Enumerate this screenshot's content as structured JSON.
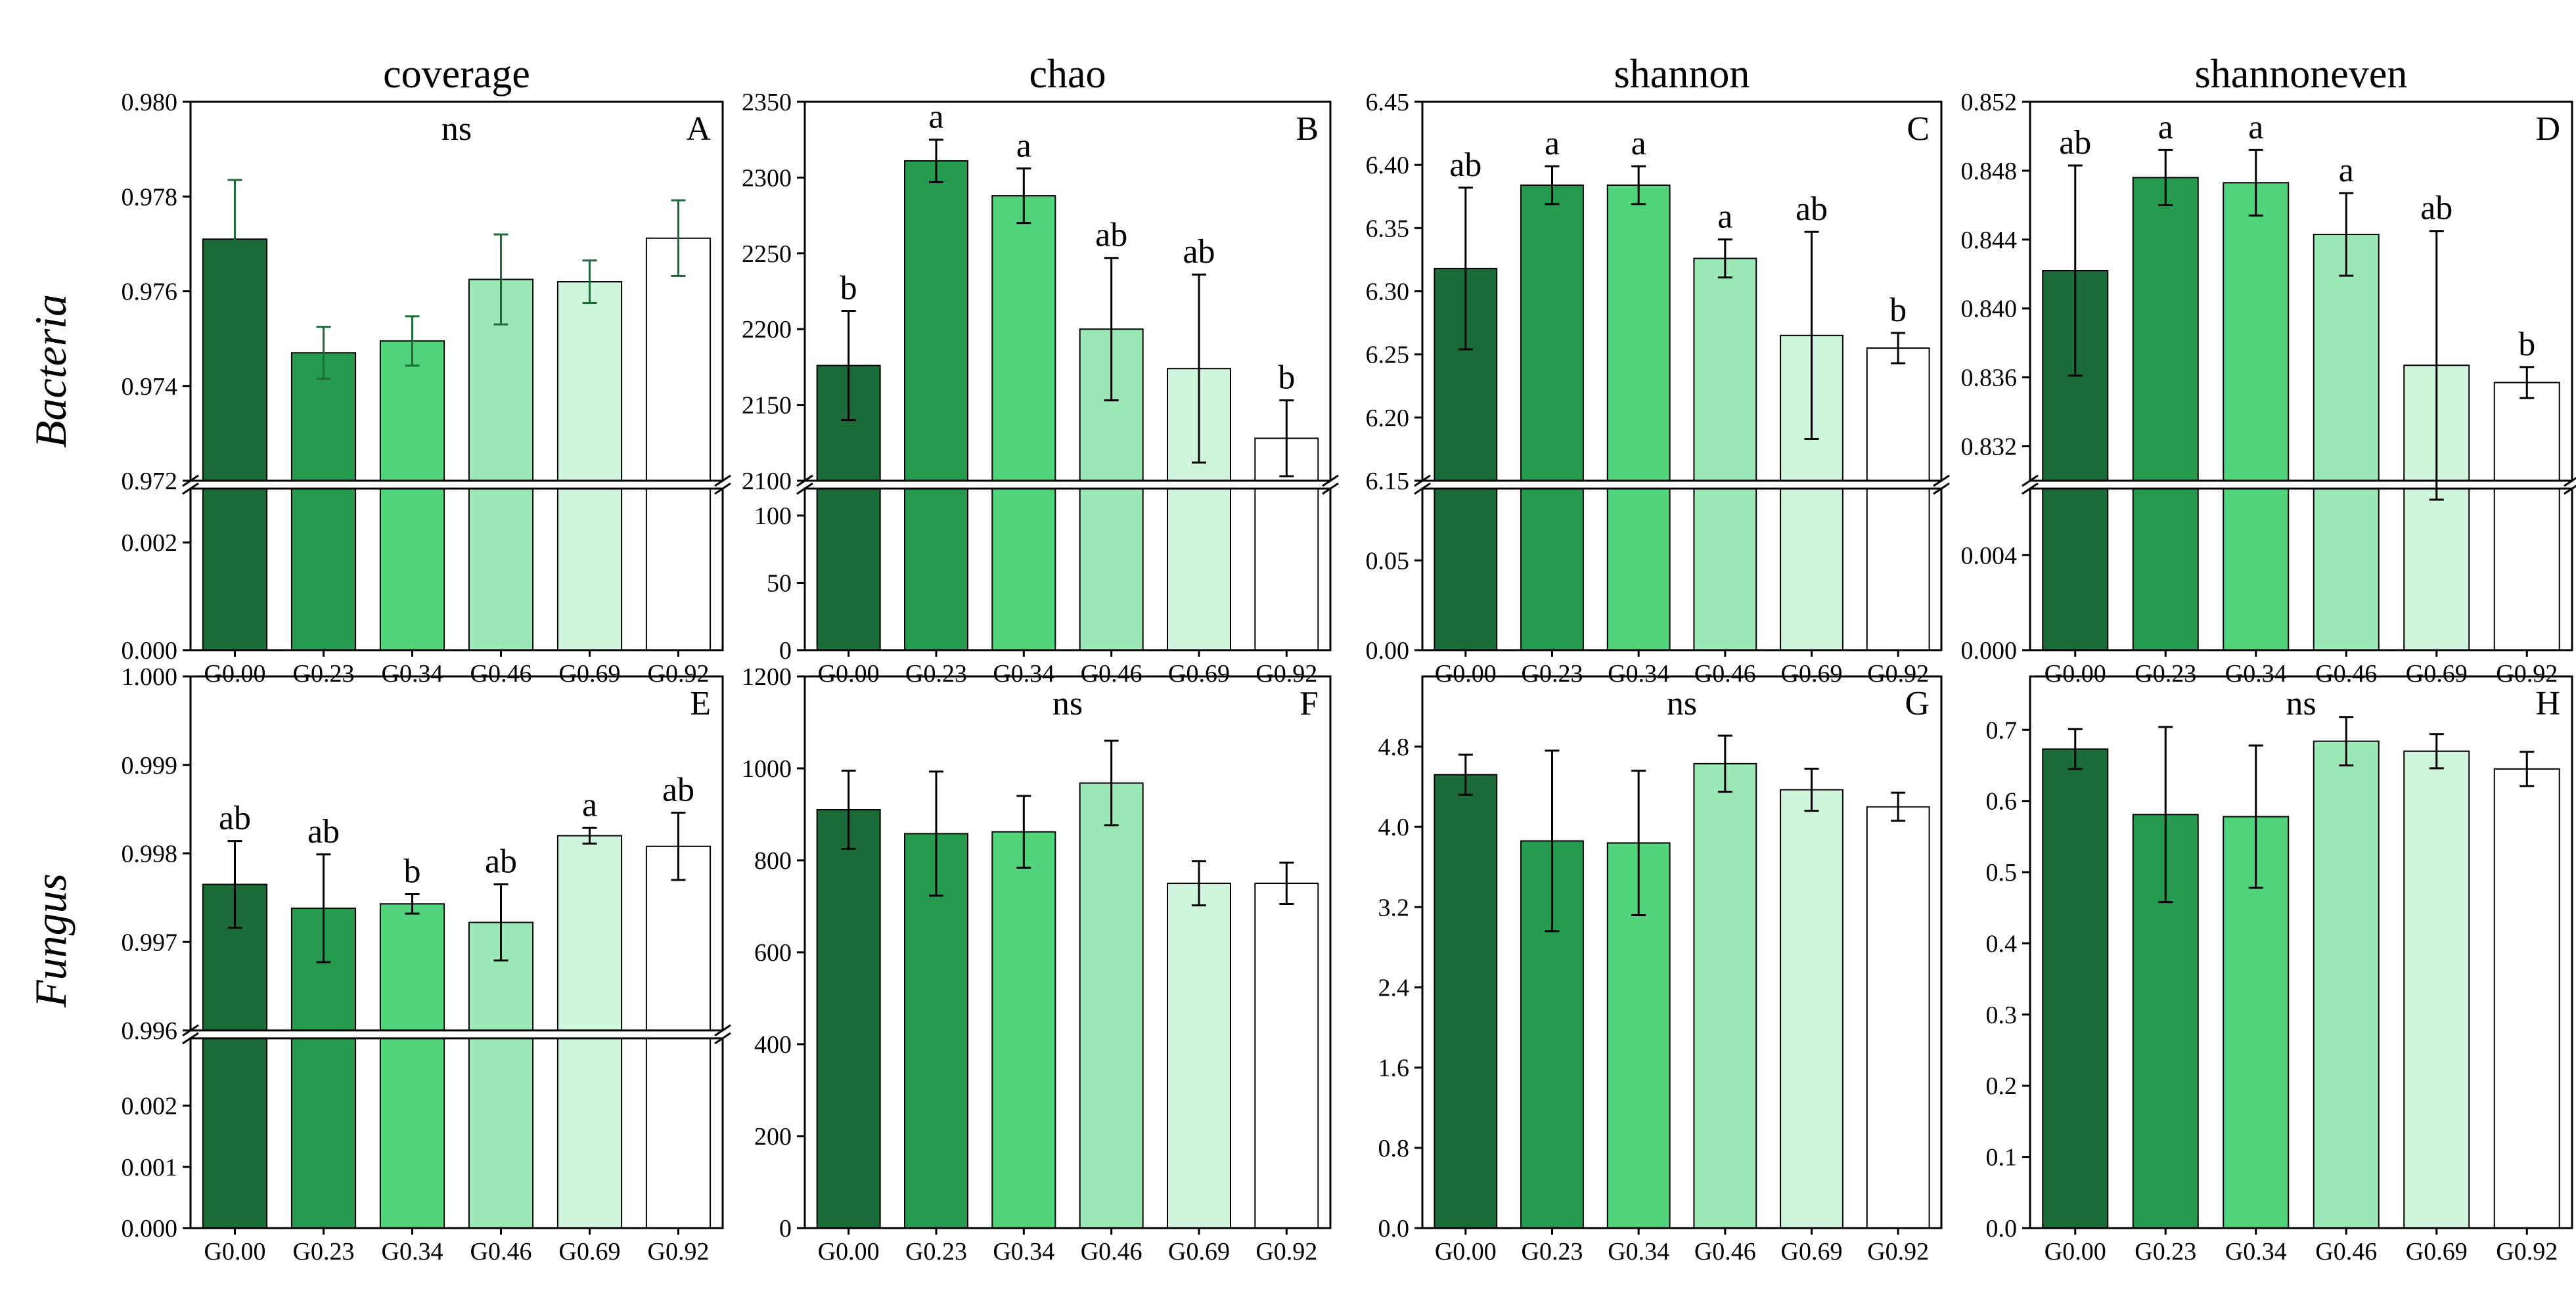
{
  "row_labels": [
    "Bacteria",
    "Fungus"
  ],
  "categories": [
    "G0.00",
    "G0.23",
    "G0.34",
    "G0.46",
    "G0.69",
    "G0.92"
  ],
  "colors": {
    "bars": [
      "#1b6b38",
      "#269a4e",
      "#52d47c",
      "#9de8b7",
      "#cff5dc",
      "#ffffff"
    ],
    "frame": "#000000"
  },
  "chart_data": [
    {
      "type": "bar",
      "id": "A",
      "title": "coverage",
      "panel_letter": "A",
      "broken_axis": true,
      "upper_ylim": [
        0.972,
        0.98
      ],
      "lower_ylim": [
        0,
        0.003
      ],
      "upper_ticks": [
        "0.972",
        "0.974",
        "0.976",
        "0.978",
        "0.980"
      ],
      "lower_ticks": [
        "0.000",
        "0.002"
      ],
      "values": [
        0.9771,
        0.9747,
        0.97495,
        0.97625,
        0.9762,
        0.97712
      ],
      "errors": [
        0.00125,
        0.00055,
        0.00052,
        0.00095,
        0.00045,
        0.0008
      ],
      "labels": [
        "",
        "",
        "",
        "",
        "",
        ""
      ],
      "significance": "ns"
    },
    {
      "type": "bar",
      "id": "B",
      "title": "chao",
      "panel_letter": "B",
      "broken_axis": true,
      "upper_ylim": [
        2100,
        2350
      ],
      "lower_ylim": [
        0,
        120
      ],
      "upper_ticks": [
        "2100",
        "2150",
        "2200",
        "2250",
        "2300",
        "2350"
      ],
      "lower_ticks": [
        "0",
        "50",
        "100"
      ],
      "values": [
        2176,
        2311,
        2288,
        2200,
        2174,
        2128
      ],
      "errors": [
        36,
        14,
        18,
        47,
        62,
        25
      ],
      "labels": [
        "b",
        "a",
        "a",
        "ab",
        "ab",
        "b"
      ],
      "significance": ""
    },
    {
      "type": "bar",
      "id": "C",
      "title": "shannon",
      "panel_letter": "C",
      "broken_axis": true,
      "upper_ylim": [
        6.15,
        6.45
      ],
      "lower_ylim": [
        0,
        0.09
      ],
      "upper_ticks": [
        "6.15",
        "6.20",
        "6.25",
        "6.30",
        "6.35",
        "6.40",
        "6.45"
      ],
      "lower_ticks": [
        "0.00",
        "0.05"
      ],
      "values": [
        6.318,
        6.384,
        6.384,
        6.326,
        6.265,
        6.255
      ],
      "errors": [
        0.064,
        0.015,
        0.015,
        0.015,
        0.082,
        0.012
      ],
      "labels": [
        "ab",
        "a",
        "a",
        "a",
        "ab",
        "b"
      ],
      "significance": ""
    },
    {
      "type": "bar",
      "id": "D",
      "title": "shannoneven",
      "panel_letter": "D",
      "broken_axis": true,
      "upper_ylim": [
        0.83,
        0.852
      ],
      "lower_ylim": [
        0,
        0.0068
      ],
      "upper_ticks": [
        "0.832",
        "0.836",
        "0.840",
        "0.844",
        "0.848",
        "0.852"
      ],
      "lower_ticks": [
        "0.000",
        "0.004"
      ],
      "values": [
        0.8422,
        0.8476,
        0.8473,
        0.8443,
        0.8367,
        0.8357
      ],
      "errors": [
        0.0061,
        0.0016,
        0.0019,
        0.0024,
        0.0078,
        0.0009
      ],
      "labels": [
        "ab",
        "a",
        "a",
        "a",
        "ab",
        "b"
      ],
      "significance": ""
    },
    {
      "type": "bar",
      "id": "E",
      "title": "",
      "panel_letter": "E",
      "broken_axis": true,
      "upper_ylim": [
        0.996,
        1.0
      ],
      "lower_ylim": [
        0,
        0.0031
      ],
      "upper_ticks": [
        "0.996",
        "0.997",
        "0.998",
        "0.999",
        "1.000"
      ],
      "lower_ticks": [
        "0.000",
        "0.001",
        "0.002"
      ],
      "values": [
        0.99765,
        0.99738,
        0.99743,
        0.99722,
        0.9982,
        0.99808
      ],
      "errors": [
        0.00049,
        0.00061,
        0.00011,
        0.00043,
        9e-05,
        0.00038
      ],
      "labels": [
        "ab",
        "ab",
        "b",
        "ab",
        "a",
        "ab"
      ],
      "significance": ""
    },
    {
      "type": "bar",
      "id": "F",
      "title": "",
      "panel_letter": "F",
      "broken_axis": false,
      "ylim": [
        0,
        1200
      ],
      "ticks": [
        "0",
        "200",
        "400",
        "600",
        "800",
        "1000",
        "1200"
      ],
      "values": [
        910,
        858,
        862,
        968,
        750,
        750
      ],
      "errors": [
        85,
        135,
        78,
        92,
        48,
        45
      ],
      "labels": [
        "",
        "",
        "",
        "",
        "",
        ""
      ],
      "significance": "ns"
    },
    {
      "type": "bar",
      "id": "G",
      "title": "",
      "panel_letter": "G",
      "broken_axis": false,
      "ylim": [
        0,
        5.5
      ],
      "ticks": [
        "0.0",
        "0.8",
        "1.6",
        "2.4",
        "3.2",
        "4.0",
        "4.8"
      ],
      "values": [
        4.52,
        3.86,
        3.84,
        4.63,
        4.37,
        4.2
      ],
      "errors": [
        0.2,
        0.9,
        0.72,
        0.28,
        0.21,
        0.14
      ],
      "labels": [
        "",
        "",
        "",
        "",
        "",
        ""
      ],
      "significance": "ns"
    },
    {
      "type": "bar",
      "id": "H",
      "title": "",
      "panel_letter": "H",
      "broken_axis": false,
      "ylim": [
        0,
        0.775
      ],
      "ticks": [
        "0.0",
        "0.1",
        "0.2",
        "0.3",
        "0.4",
        "0.5",
        "0.6",
        "0.7"
      ],
      "values": [
        0.673,
        0.581,
        0.578,
        0.684,
        0.67,
        0.645
      ],
      "errors": [
        0.028,
        0.123,
        0.1,
        0.034,
        0.024,
        0.024
      ],
      "labels": [
        "",
        "",
        "",
        "",
        "",
        ""
      ],
      "significance": "ns"
    }
  ]
}
